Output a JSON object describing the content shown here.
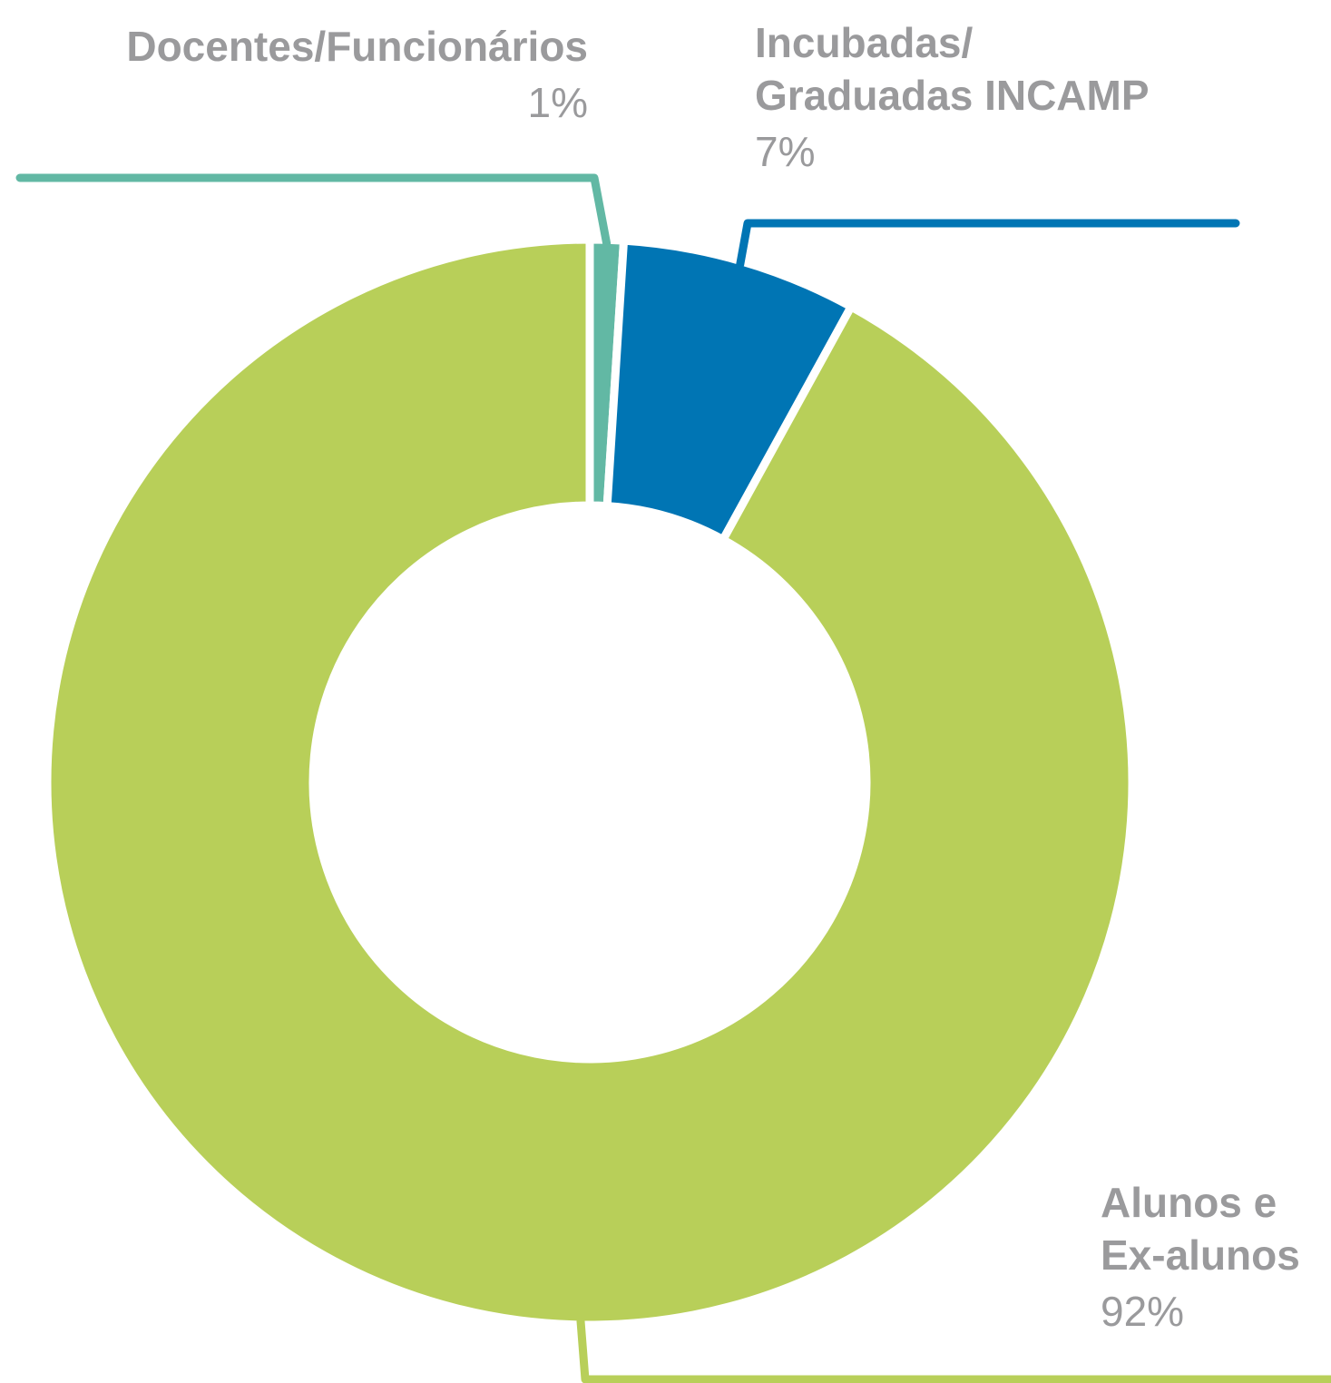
{
  "chart_data": {
    "type": "donut",
    "categories": [
      "Docentes/Funcionários",
      "Incubadas/\nGraduadas INCAMP",
      "Alunos e\nEx-alunos"
    ],
    "values": [
      1,
      7,
      92
    ],
    "value_labels": [
      "1%",
      "7%",
      "92%"
    ],
    "colors": [
      "#62b8a4",
      "#0075b4",
      "#b8cf59"
    ]
  }
}
